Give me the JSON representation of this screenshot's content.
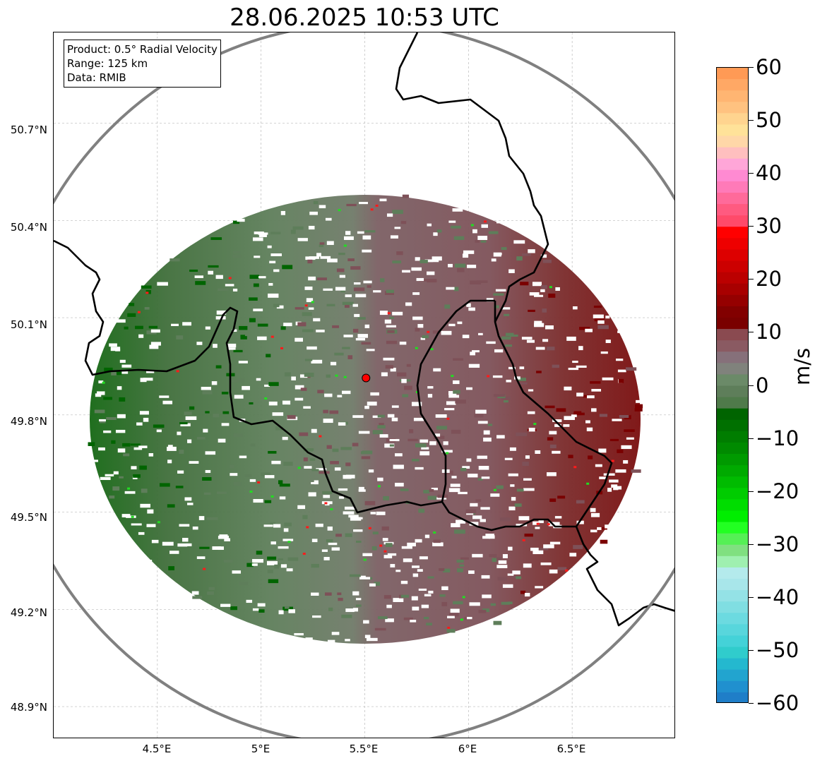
{
  "title": "28.06.2025 10:53 UTC",
  "info_box": {
    "line1": "Product: 0.5° Radial Velocity",
    "line2": "Range: 125 km",
    "line3": "Data: RMIB"
  },
  "latitude_labels": [
    "50.7°N",
    "50.4°N",
    "50.1°N",
    "49.8°N",
    "49.5°N",
    "49.2°N",
    "48.9°N"
  ],
  "longitude_labels": [
    "4.5°E",
    "5°E",
    "5.5°E",
    "6°E",
    "6.5°E"
  ],
  "colorbar": {
    "unit": "m/s",
    "ticks": [
      "60",
      "50",
      "40",
      "30",
      "20",
      "10",
      "0",
      "−10",
      "−20",
      "−30",
      "−40",
      "−50",
      "−60"
    ],
    "range": [
      -60,
      60
    ]
  },
  "map_data": {
    "extent_lon": [
      4.0,
      7.0
    ],
    "extent_lat": [
      48.8,
      50.98
    ],
    "radar_site": {
      "lon": 5.506,
      "lat": 49.914
    },
    "range_ring_km": 125,
    "colors": {
      "outbound_far": "#7a0000",
      "outbound_near": "#7e5158",
      "inbound_near": "#5e7e5a",
      "inbound_far": "#006400",
      "border": "#000000",
      "range_ring": "#808080",
      "radar_marker": "#ff0000"
    }
  }
}
